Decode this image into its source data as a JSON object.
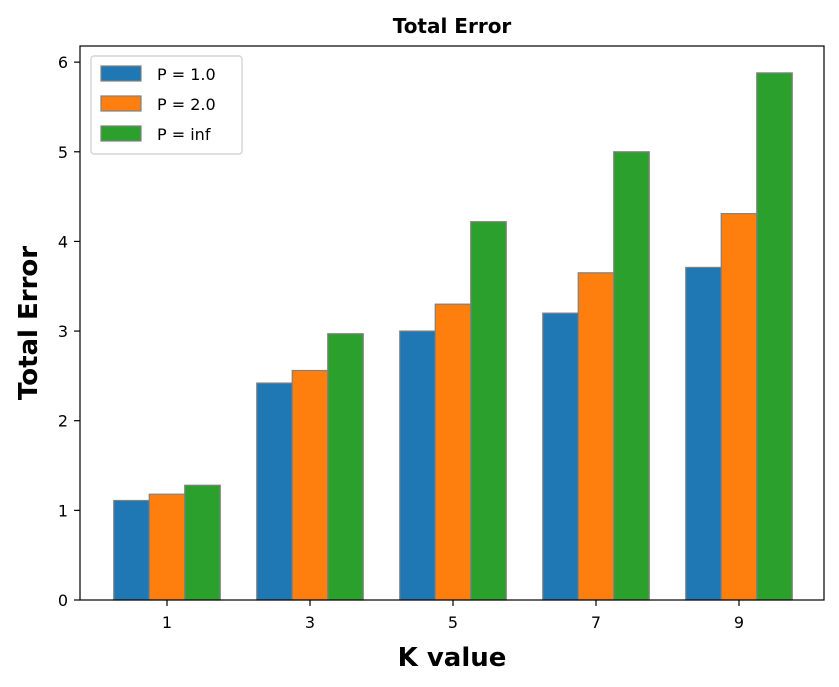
{
  "chart_data": {
    "type": "bar",
    "title": "Total Error",
    "xlabel": "K value",
    "ylabel": "Total Error",
    "categories": [
      "1",
      "3",
      "5",
      "7",
      "9"
    ],
    "ylim": [
      0,
      6.18
    ],
    "yticks": [
      0,
      1,
      2,
      3,
      4,
      5,
      6
    ],
    "grid": false,
    "legend_position": "top-left",
    "series": [
      {
        "name": "P = 1.0",
        "color": "#1f77b4",
        "values": [
          1.11,
          2.42,
          3.0,
          3.2,
          3.71
        ]
      },
      {
        "name": "P = 2.0",
        "color": "#ff7f0e",
        "values": [
          1.18,
          2.56,
          3.3,
          3.65,
          4.31
        ]
      },
      {
        "name": "P = inf",
        "color": "#2ca02c",
        "values": [
          1.28,
          2.97,
          4.22,
          5.0,
          5.88
        ]
      }
    ],
    "bar_edge_color": "#808080"
  }
}
